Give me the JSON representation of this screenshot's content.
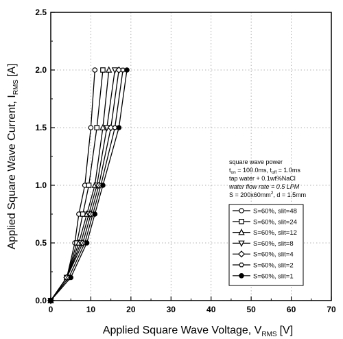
{
  "chart_data": {
    "type": "line",
    "title": "",
    "xlabel": "Applied Square Wave Voltage, V",
    "xlabel_sub": "RMS",
    "xlabel_unit": "[V]",
    "ylabel": "Applied Square Wave Current, I",
    "ylabel_sub": "RMS",
    "ylabel_unit": "[A]",
    "xlim": [
      0,
      70
    ],
    "ylim": [
      0,
      2.5
    ],
    "x_ticks": [
      "0",
      "10",
      "20",
      "30",
      "40",
      "50",
      "60",
      "70"
    ],
    "y_ticks": [
      "0.0",
      "0.5",
      "1.0",
      "1.5",
      "2.0",
      "2.5"
    ],
    "grid": true,
    "legend_position": "right",
    "annotation": {
      "line1": "square wave power",
      "line2": "t",
      "line2_sub1": "on",
      "line2_mid": " = 100.0ms, t",
      "line2_sub2": "off",
      "line2_end": " = 1.0ms",
      "line3": "tap water + 0.1wt%NaCl",
      "line4": "water flow rate = 0.5 LPM",
      "line5a": "S = 200x60mm",
      "line5sup": "2",
      "line5b": ", d = 1.5mm"
    },
    "series": [
      {
        "name": "S=60%, slit=48",
        "marker": "circle-open",
        "x": [
          0,
          4,
          6,
          7,
          8.5,
          10,
          11
        ],
        "y": [
          0,
          0.2,
          0.5,
          0.75,
          1.0,
          1.5,
          2.0
        ]
      },
      {
        "name": "S=60%, slit=24",
        "marker": "square-open",
        "x": [
          0,
          4,
          6.5,
          8,
          9.5,
          11.5,
          13
        ],
        "y": [
          0,
          0.2,
          0.5,
          0.75,
          1.0,
          1.5,
          2.0
        ]
      },
      {
        "name": "S=60%, slit=12",
        "marker": "triangle-up-open",
        "x": [
          0,
          4,
          7,
          9,
          11,
          13,
          14.5
        ],
        "y": [
          0,
          0.2,
          0.5,
          0.75,
          1.0,
          1.5,
          2.0
        ]
      },
      {
        "name": "S=60%, slit=8",
        "marker": "triangle-down-open",
        "x": [
          0,
          4,
          7.5,
          9.5,
          11.5,
          14,
          16
        ],
        "y": [
          0,
          0.2,
          0.5,
          0.75,
          1.0,
          1.5,
          2.0
        ]
      },
      {
        "name": "S=60%, slit=4",
        "marker": "diamond-open",
        "x": [
          0,
          4,
          8,
          10,
          12,
          15,
          17
        ],
        "y": [
          0,
          0.2,
          0.5,
          0.75,
          1.0,
          1.5,
          2.0
        ]
      },
      {
        "name": "S=60%, slit=2",
        "marker": "hexagon-open",
        "x": [
          0,
          4.5,
          8.5,
          10.5,
          12.5,
          16,
          18
        ],
        "y": [
          0,
          0.2,
          0.5,
          0.75,
          1.0,
          1.5,
          2.0
        ]
      },
      {
        "name": "S=60%, slit=1",
        "marker": "circle-filled",
        "x": [
          0,
          5,
          9,
          11,
          13,
          17,
          19
        ],
        "y": [
          0,
          0.2,
          0.5,
          0.75,
          1.0,
          1.5,
          2.0
        ]
      }
    ]
  }
}
